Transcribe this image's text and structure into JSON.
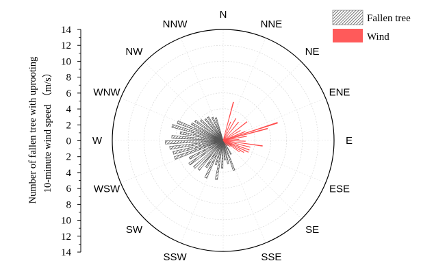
{
  "chart_data": {
    "type": "polar-bar",
    "y_axis": {
      "label_line1": "Number of fallen tree with uprooting",
      "label_line2": "10-minute wind speed （m/s）",
      "range": [
        0,
        14
      ],
      "ticks": [
        "14",
        "12",
        "10",
        "8",
        "6",
        "4",
        "2",
        "0",
        "2",
        "4",
        "6",
        "8",
        "10",
        "12",
        "14"
      ]
    },
    "directions": [
      "N",
      "NNE",
      "NE",
      "ENE",
      "E",
      "ESE",
      "SE",
      "SSE",
      "S",
      "SSW",
      "SW",
      "WSW",
      "W",
      "WNW",
      "NW",
      "NNW"
    ],
    "grid": true,
    "legend": {
      "placement": "top-right",
      "entries": [
        {
          "name": "Fallen tree",
          "pattern": "hatched"
        },
        {
          "name": "Wind",
          "color": "#ff5a5a"
        }
      ]
    },
    "series": [
      {
        "name": "Fallen tree",
        "color": "#3a3a3a",
        "points": [
          {
            "deg": 120,
            "value": 1.2
          },
          {
            "deg": 135,
            "value": 0.9
          },
          {
            "deg": 150,
            "value": 2.0
          },
          {
            "deg": 160,
            "value": 4.0
          },
          {
            "deg": 168,
            "value": 3.0
          },
          {
            "deg": 175,
            "value": 2.5
          },
          {
            "deg": 182,
            "value": 3.5
          },
          {
            "deg": 190,
            "value": 5.0
          },
          {
            "deg": 197,
            "value": 3.2
          },
          {
            "deg": 205,
            "value": 5.2
          },
          {
            "deg": 212,
            "value": 4.0
          },
          {
            "deg": 220,
            "value": 4.8
          },
          {
            "deg": 227,
            "value": 5.0
          },
          {
            "deg": 235,
            "value": 5.2
          },
          {
            "deg": 242,
            "value": 4.8
          },
          {
            "deg": 250,
            "value": 6.5
          },
          {
            "deg": 256,
            "value": 6.5
          },
          {
            "deg": 262,
            "value": 6.8
          },
          {
            "deg": 268,
            "value": 7.3
          },
          {
            "deg": 274,
            "value": 6.5
          },
          {
            "deg": 280,
            "value": 5.5
          },
          {
            "deg": 286,
            "value": 6.7
          },
          {
            "deg": 292,
            "value": 6.2
          },
          {
            "deg": 298,
            "value": 4.5
          },
          {
            "deg": 305,
            "value": 4.3
          },
          {
            "deg": 312,
            "value": 3.8
          },
          {
            "deg": 320,
            "value": 3.5
          },
          {
            "deg": 327,
            "value": 3.5
          },
          {
            "deg": 335,
            "value": 3.2
          },
          {
            "deg": 342,
            "value": 3.0
          }
        ]
      },
      {
        "name": "Wind",
        "color": "#ff4d4d",
        "points": [
          {
            "deg": 15,
            "value": 5.0
          },
          {
            "deg": 22,
            "value": 2.5
          },
          {
            "deg": 30,
            "value": 3.2
          },
          {
            "deg": 40,
            "value": 3.0
          },
          {
            "deg": 52,
            "value": 3.8
          },
          {
            "deg": 60,
            "value": 2.5
          },
          {
            "deg": 68,
            "value": 3.0
          },
          {
            "deg": 72,
            "value": 7.2
          },
          {
            "deg": 75,
            "value": 5.8
          },
          {
            "deg": 80,
            "value": 3.0
          },
          {
            "deg": 86,
            "value": 2.0
          },
          {
            "deg": 92,
            "value": 2.8
          },
          {
            "deg": 98,
            "value": 5.0
          },
          {
            "deg": 104,
            "value": 3.5
          },
          {
            "deg": 110,
            "value": 3.5
          },
          {
            "deg": 115,
            "value": 3.5
          },
          {
            "deg": 120,
            "value": 3.0
          },
          {
            "deg": 125,
            "value": 2.5
          },
          {
            "deg": 132,
            "value": 1.2
          },
          {
            "deg": 145,
            "value": 0.8
          }
        ]
      }
    ]
  }
}
